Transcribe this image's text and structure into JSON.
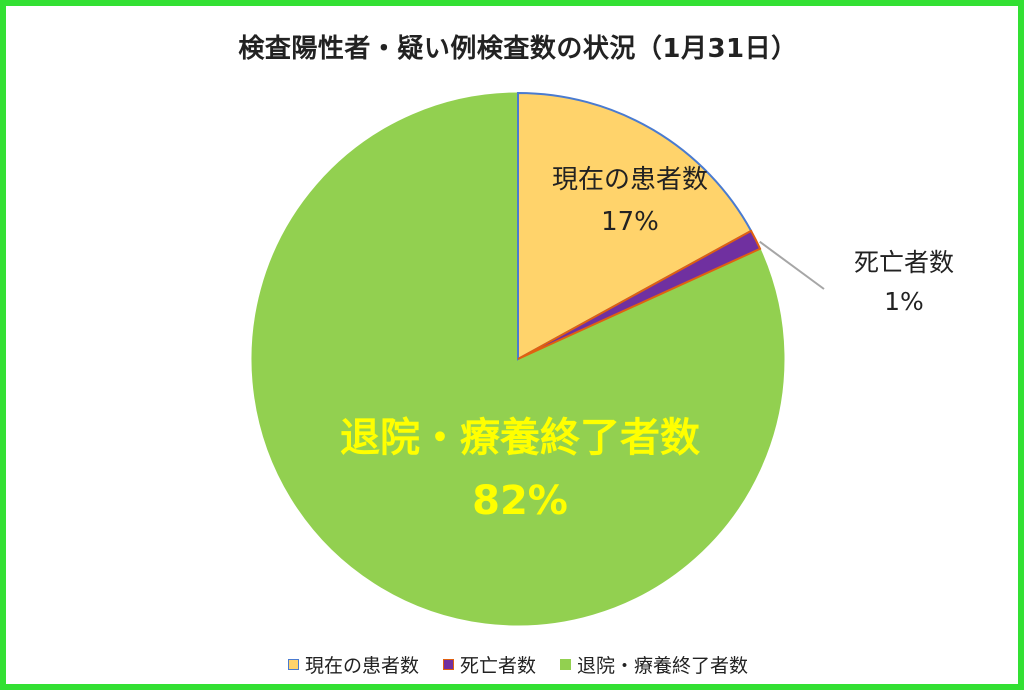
{
  "chart_data": {
    "type": "pie",
    "title": "検査陽性者・疑い例検査数の状況（1月31日）",
    "slices": [
      {
        "label": "現在の患者数",
        "value": 17,
        "display": "17%",
        "color": "#ffd36b",
        "edge": "#4a7bd0"
      },
      {
        "label": "死亡者数",
        "value": 1.2,
        "display": "1%",
        "color": "#7030a0",
        "edge": "#e06010"
      },
      {
        "label": "退院・療養終了者数",
        "value": 81.8,
        "display": "82%",
        "color": "#92d050",
        "edge": "#92d050"
      }
    ],
    "legend_position": "bottom",
    "label_colors": {
      "default": "#222222",
      "highlight": "#ffff00"
    }
  }
}
